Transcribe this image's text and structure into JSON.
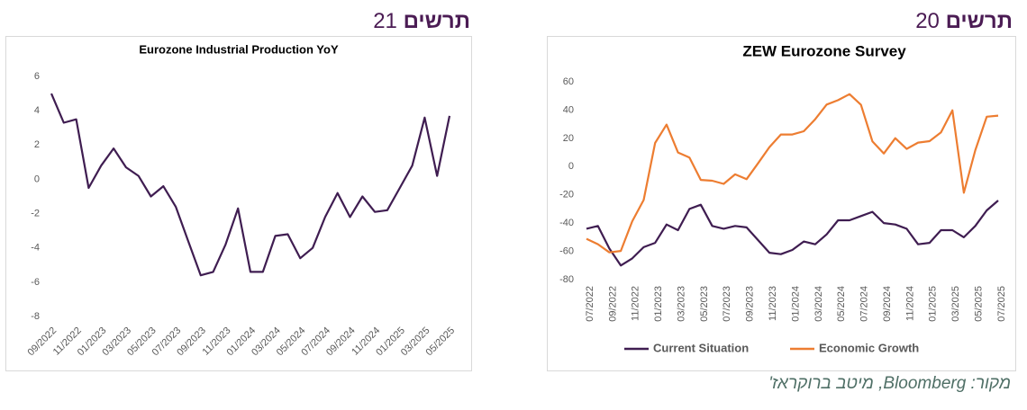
{
  "panels": [
    {
      "label": "תרשים",
      "number": 21
    },
    {
      "label": "תרשים",
      "number": 20
    }
  ],
  "source": "מקור: Bloomberg, מיטב ברוקראז'",
  "chart_data": [
    {
      "type": "line",
      "title": "Eurozone Industrial Production YoY",
      "color": "#3f1d51",
      "categories": [
        "09/2022",
        null,
        "11/2022",
        null,
        "01/2023",
        null,
        "03/2023",
        null,
        "05/2023",
        null,
        "07/2023",
        null,
        "09/2023",
        null,
        "11/2023",
        null,
        "01/2024",
        null,
        "03/2024",
        null,
        "05/2024",
        null,
        "07/2024",
        null,
        "09/2024",
        null,
        "11/2024",
        null,
        "01/2025",
        null,
        "03/2025",
        null,
        "05/2025"
      ],
      "values": [
        5.0,
        3.3,
        3.5,
        -0.5,
        0.8,
        1.8,
        0.7,
        0.2,
        -1.0,
        -0.4,
        -1.6,
        -3.6,
        -5.6,
        -5.4,
        -3.8,
        -1.7,
        -5.4,
        -5.4,
        -3.3,
        -3.2,
        -4.6,
        -4.0,
        -2.2,
        -0.8,
        -2.2,
        -1.0,
        -1.9,
        -1.8,
        -0.5,
        0.8,
        3.6,
        0.2,
        3.7
      ],
      "ylim": [
        -8,
        6
      ],
      "yticks": [
        -8,
        -6,
        -4,
        -2,
        0,
        2,
        4,
        6
      ],
      "grid": false
    },
    {
      "type": "line",
      "title": "ZEW Eurozone Survey",
      "categories": [
        "07/2022",
        null,
        "09/2022",
        null,
        "11/2022",
        null,
        "01/2023",
        null,
        "03/2023",
        null,
        "05/2023",
        null,
        "07/2023",
        null,
        "09/2023",
        null,
        "11/2023",
        null,
        "01/2024",
        null,
        "03/2024",
        null,
        "05/2024",
        null,
        "07/2024",
        null,
        "09/2024",
        null,
        "11/2024",
        null,
        "01/2025",
        null,
        "03/2025",
        null,
        "05/2025",
        null,
        "07/2025"
      ],
      "series": [
        {
          "name": "Current Situation",
          "color": "#3f1d51",
          "values": [
            -44,
            -42,
            -58,
            -70,
            -65,
            -57,
            -54,
            -41,
            -45,
            -30,
            -27,
            -42,
            -44,
            -42,
            -43,
            -52,
            -61,
            -62,
            -59,
            -53,
            -55,
            -48,
            -38,
            -38,
            -35,
            -32,
            -40,
            -41,
            -44,
            -55,
            -54,
            -45,
            -45,
            -50,
            -42,
            -31,
            -24
          ]
        },
        {
          "name": "Economic Growth",
          "color": "#ed7d31",
          "values": [
            -51.1,
            -54.9,
            -60.7,
            -59.7,
            -38.7,
            -23.6,
            16.7,
            29.7,
            10.0,
            6.4,
            -9.4,
            -10.0,
            -12.2,
            -5.5,
            -8.9,
            2.3,
            13.8,
            22.7,
            22.7,
            25.0,
            33.5,
            43.9,
            47.0,
            51.3,
            43.7,
            17.9,
            9.3,
            20.1,
            12.5,
            17.0,
            18.0,
            24.2,
            39.8,
            -18.5,
            11.6,
            35.3,
            36.1
          ]
        }
      ],
      "ylim": [
        -80,
        60
      ],
      "yticks": [
        -80,
        -60,
        -40,
        -20,
        0,
        20,
        40,
        60
      ],
      "grid": false,
      "legend": "bottom"
    }
  ]
}
